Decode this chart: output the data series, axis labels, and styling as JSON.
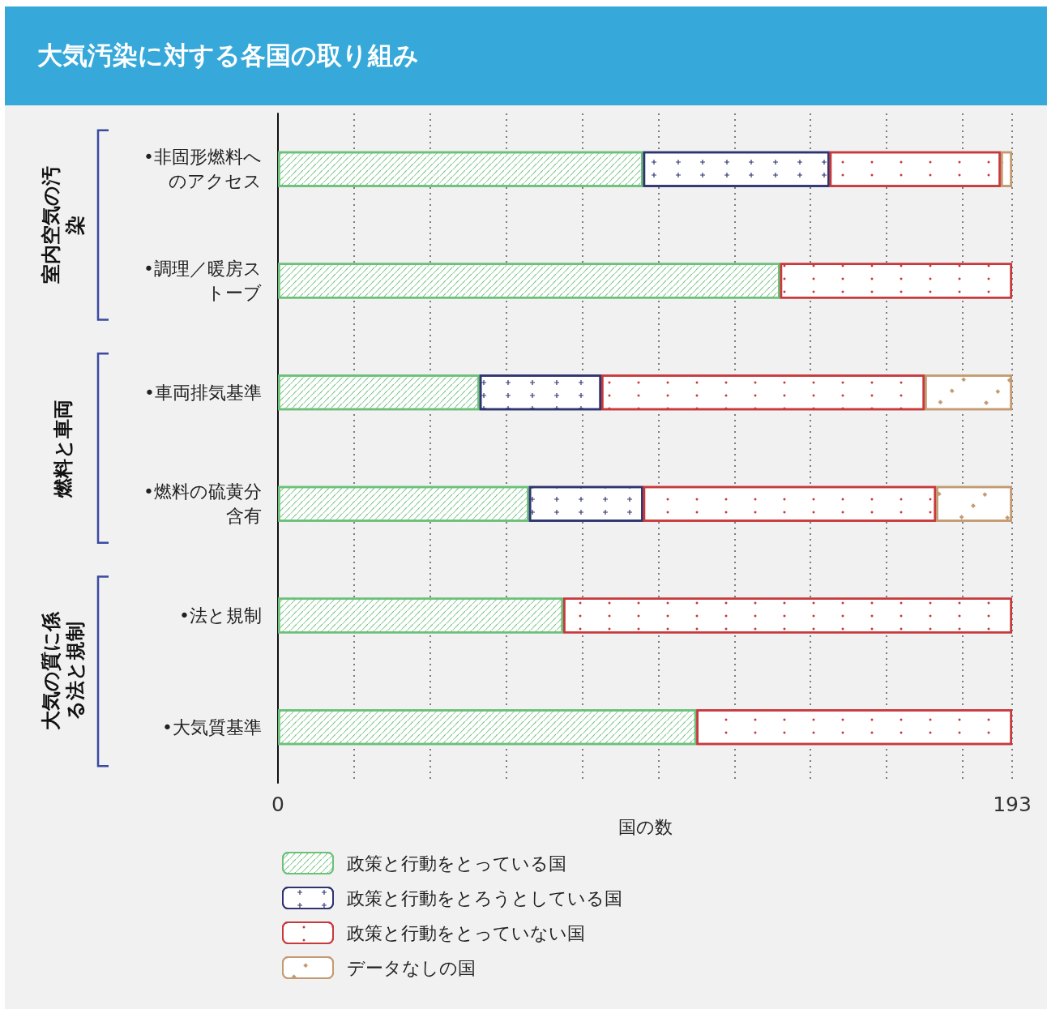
{
  "chart_data": {
    "type": "bar",
    "orientation": "horizontal",
    "stacked": true,
    "title": "大気汚染に対する各国の取り組み",
    "categories": [
      "•非固形燃料へのアクセス",
      "•調理／暖房ストーブ",
      "•車両排気基準",
      "•燃料の硫黄分含有",
      "•法と規制",
      "•大気質基準"
    ],
    "series": [
      {
        "name": "政策と行動をとっている国",
        "color": "#6cc07a",
        "values": [
          96,
          132,
          53,
          66,
          75,
          110
        ]
      },
      {
        "name": "政策と行動をとろうとしている国",
        "color": "#2f3470",
        "values": [
          49,
          null,
          32,
          30,
          null,
          null
        ]
      },
      {
        "name": "政策と行動をとっていない国",
        "color": "#c8393c",
        "values": [
          45,
          61,
          85,
          77,
          118,
          83
        ]
      },
      {
        "name": "データなしの国",
        "color": "#c39a72",
        "values": [
          3,
          null,
          23,
          20,
          null,
          null
        ]
      }
    ],
    "xlabel": "国の数",
    "xlim": [
      0,
      193
    ],
    "xticks": [
      0,
      {
        "value": 20,
        "label": null
      },
      {
        "value": 40,
        "label": null
      },
      {
        "value": 60,
        "label": null
      },
      {
        "value": 80,
        "label": null
      },
      {
        "value": 100,
        "label": null
      },
      {
        "value": 120,
        "label": null
      },
      {
        "value": 140,
        "label": null
      },
      {
        "value": 160,
        "label": null
      },
      {
        "value": 180,
        "label": null
      },
      193
    ],
    "grid": "x",
    "legend": "bottom left",
    "annotations": [
      "室内空気の汚染",
      "燃料と車両",
      "大気の質に係る法と規制"
    ]
  }
}
